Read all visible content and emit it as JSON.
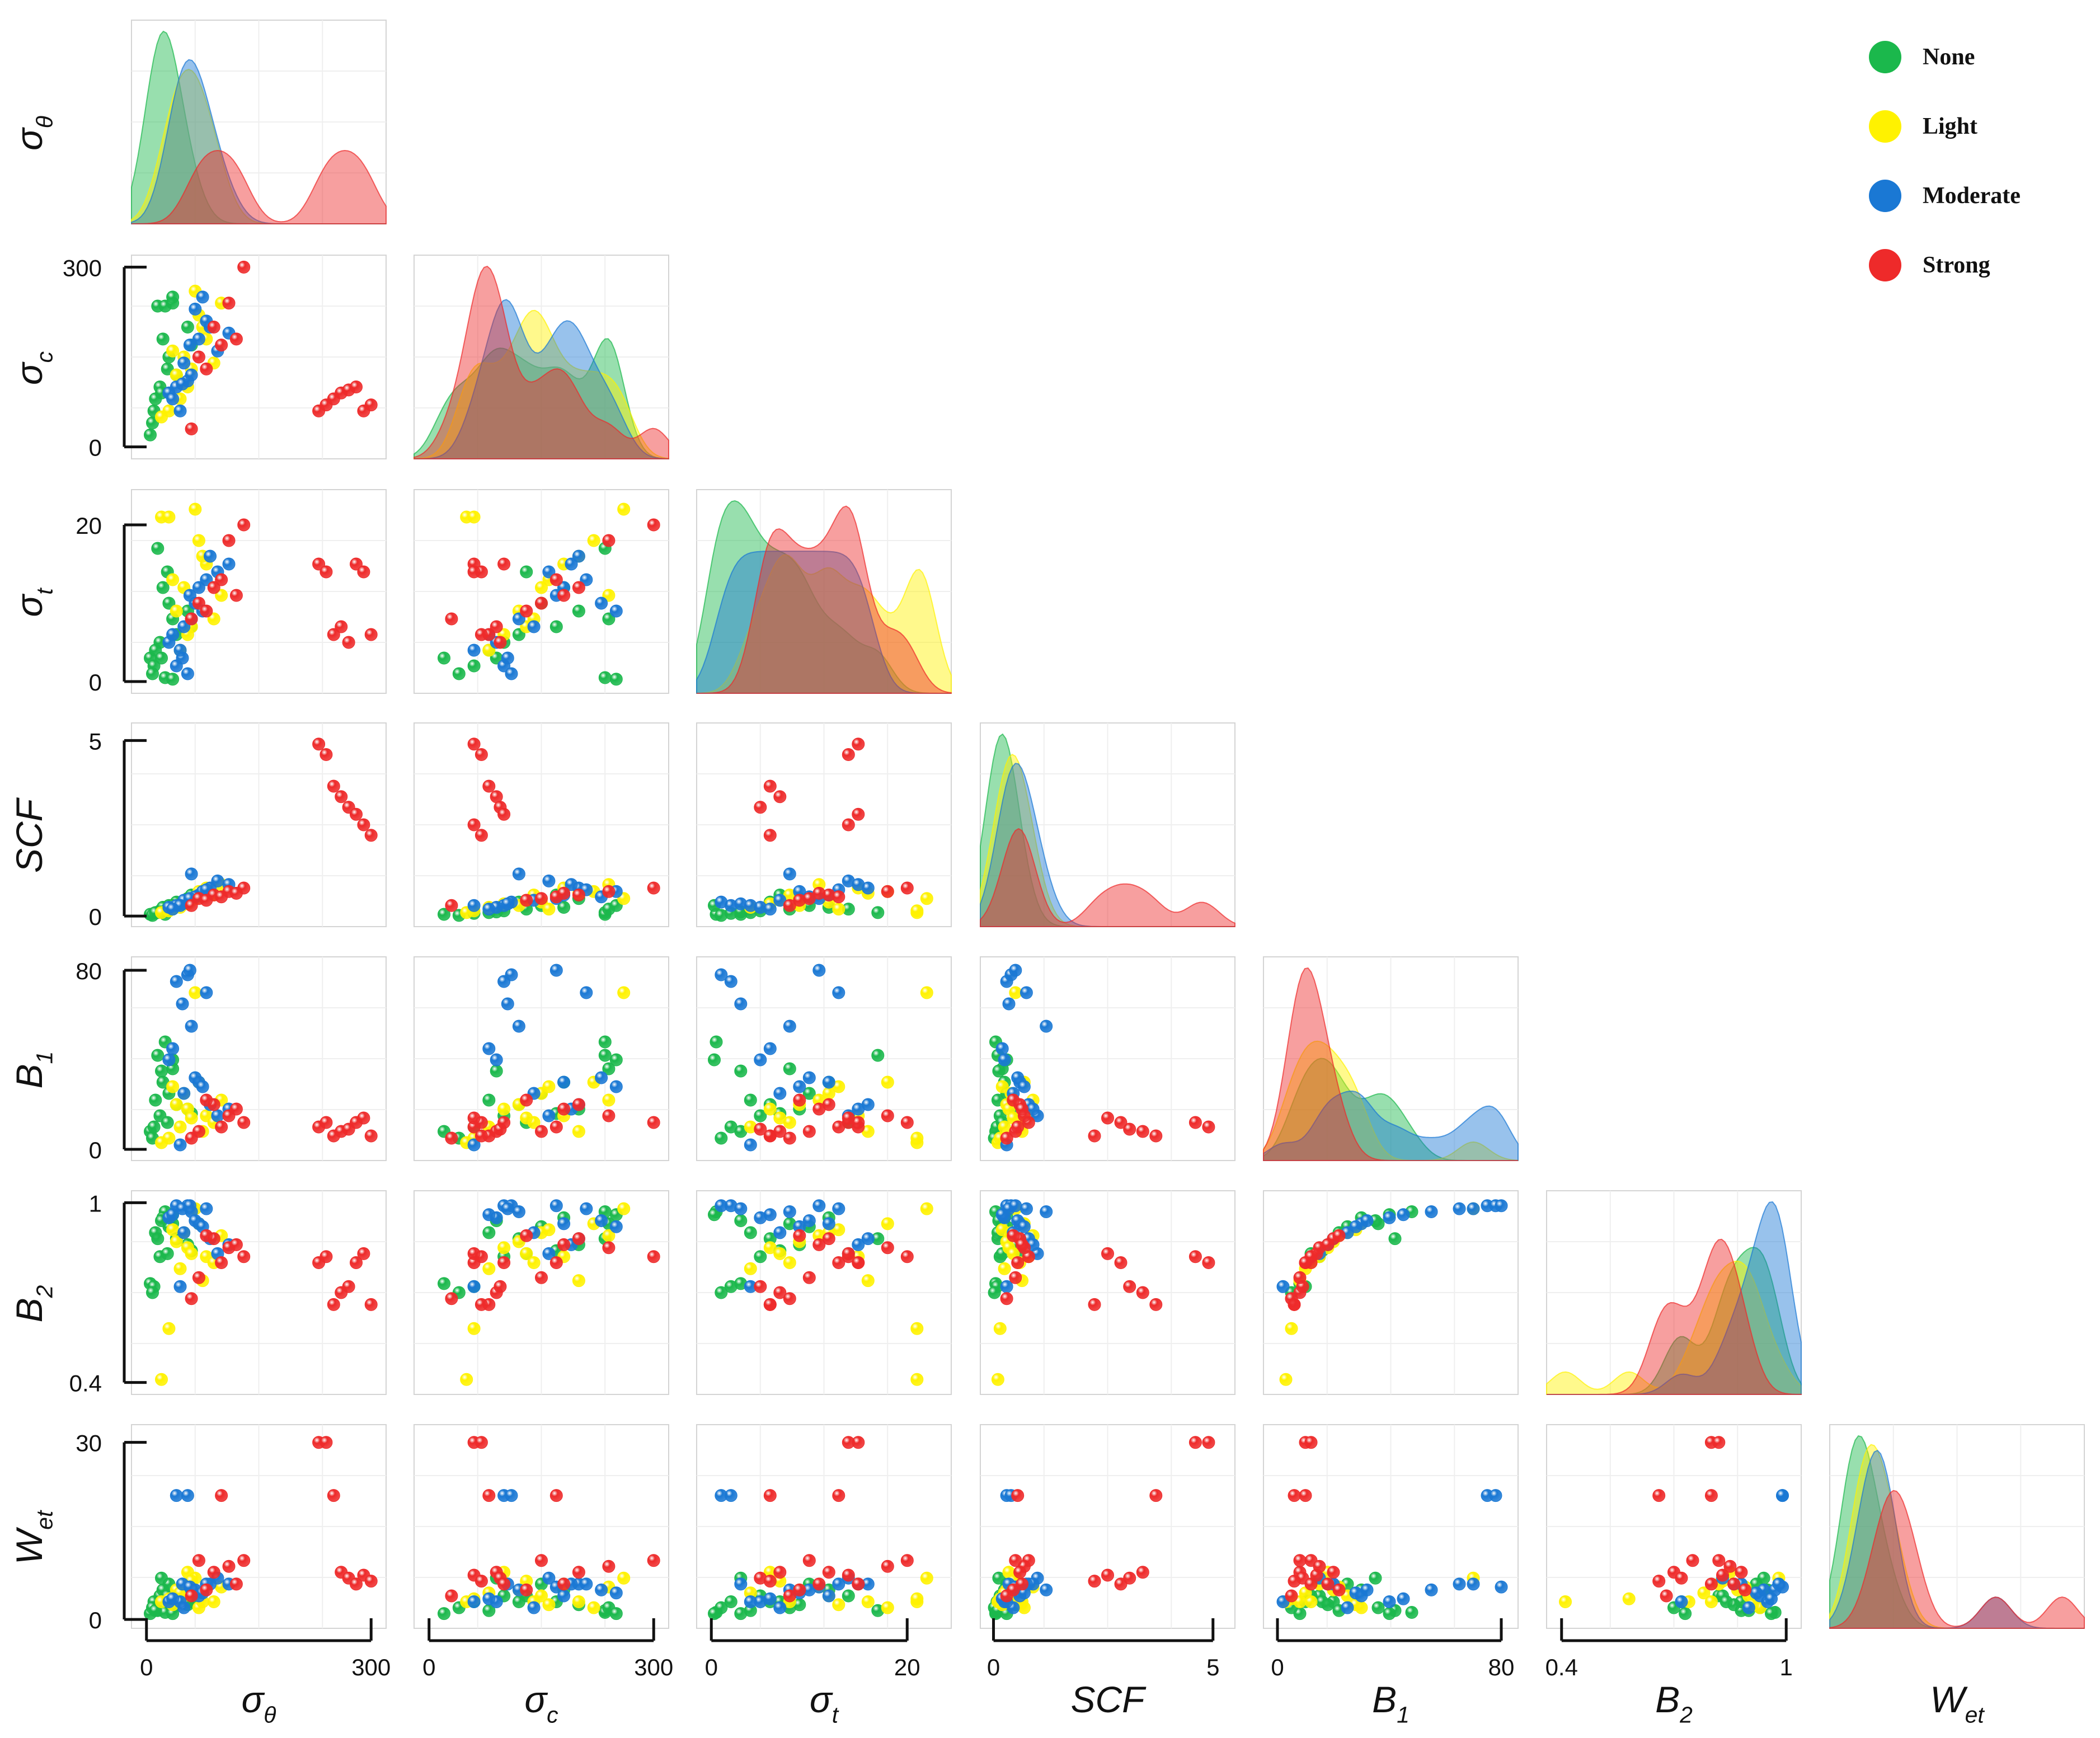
{
  "chart_data": {
    "type": "scatter",
    "title": "",
    "variables": [
      {
        "key": "s_theta",
        "base": "σ",
        "sub": "θ",
        "range": [
          -20,
          320
        ],
        "ticks": [
          0,
          300
        ]
      },
      {
        "key": "s_c",
        "base": "σ",
        "sub": "c",
        "range": [
          -20,
          320
        ],
        "ticks": [
          0,
          300
        ]
      },
      {
        "key": "s_t",
        "base": "σ",
        "sub": "t",
        "range": [
          -1.5,
          24.5
        ],
        "ticks": [
          0,
          20
        ]
      },
      {
        "key": "SCF",
        "base": "SCF",
        "sub": "",
        "range": [
          -0.3,
          5.5
        ],
        "ticks": [
          0,
          5
        ]
      },
      {
        "key": "B1",
        "base": "B",
        "sub": "1",
        "range": [
          -5,
          86
        ],
        "ticks": [
          0,
          80
        ]
      },
      {
        "key": "B2",
        "base": "B",
        "sub": "2",
        "range": [
          0.36,
          1.04
        ],
        "ticks": [
          0.4,
          1
        ]
      },
      {
        "key": "Wet",
        "base": "W",
        "sub": "et",
        "range": [
          -1.5,
          33
        ],
        "ticks": [
          0,
          30
        ]
      }
    ],
    "legend": {
      "position": "top-right",
      "categories": [
        {
          "name": "None",
          "color": "#1bb84c"
        },
        {
          "name": "Light",
          "color": "#fff200"
        },
        {
          "name": "Moderate",
          "color": "#1a78d4"
        },
        {
          "name": "Strong",
          "color": "#ee2a2a"
        }
      ]
    },
    "series": [
      {
        "name": "None",
        "points": [
          {
            "s_theta": 15,
            "s_c": 235,
            "s_t": 17,
            "SCF": 0.1,
            "B1": 42,
            "B2": 0.88,
            "Wet": 1.5
          },
          {
            "s_theta": 25,
            "s_c": 235,
            "s_t": 0.5,
            "SCF": 0.05,
            "B1": 48,
            "B2": 0.97,
            "Wet": 1.2
          },
          {
            "s_theta": 35,
            "s_c": 240,
            "s_t": 8,
            "SCF": 0.2,
            "B1": 36,
            "B2": 0.93,
            "Wet": 2
          },
          {
            "s_theta": 5,
            "s_c": 20,
            "s_t": 3,
            "SCF": 0.05,
            "B1": 8,
            "B2": 0.73,
            "Wet": 1
          },
          {
            "s_theta": 10,
            "s_c": 60,
            "s_t": 2,
            "SCF": 0.08,
            "B1": 10,
            "B2": 0.72,
            "Wet": 3
          },
          {
            "s_theta": 18,
            "s_c": 100,
            "s_t": 5,
            "SCF": 0.15,
            "B1": 15,
            "B2": 0.82,
            "Wet": 4
          },
          {
            "s_theta": 30,
            "s_c": 150,
            "s_t": 10,
            "SCF": 0.3,
            "B1": 25,
            "B2": 0.92,
            "Wet": 6
          },
          {
            "s_theta": 22,
            "s_c": 180,
            "s_t": 12,
            "SCF": 0.25,
            "B1": 30,
            "B2": 0.95,
            "Wet": 5
          },
          {
            "s_theta": 8,
            "s_c": 40,
            "s_t": 1,
            "SCF": 0.02,
            "B1": 5,
            "B2": 0.7,
            "Wet": 2
          },
          {
            "s_theta": 40,
            "s_c": 120,
            "s_t": 6,
            "SCF": 0.4,
            "B1": 20,
            "B2": 0.88,
            "Wet": 3
          },
          {
            "s_theta": 12,
            "s_c": 80,
            "s_t": 4,
            "SCF": 0.1,
            "B1": 22,
            "B2": 0.9,
            "Wet": 1.5
          },
          {
            "s_theta": 55,
            "s_c": 200,
            "s_t": 9,
            "SCF": 0.5,
            "B1": 18,
            "B2": 0.86,
            "Wet": 2.5
          },
          {
            "s_theta": 28,
            "s_c": 130,
            "s_t": 14,
            "SCF": 0.2,
            "B1": 12,
            "B2": 0.83,
            "Wet": 4
          },
          {
            "s_theta": 60,
            "s_c": 170,
            "s_t": 7,
            "SCF": 0.6,
            "B1": 16,
            "B2": 0.84,
            "Wet": 3
          },
          {
            "s_theta": 20,
            "s_c": 90,
            "s_t": 3,
            "SCF": 0.12,
            "B1": 35,
            "B2": 0.94,
            "Wet": 7
          },
          {
            "s_theta": 35,
            "s_c": 250,
            "s_t": 0.3,
            "SCF": 0.3,
            "B1": 40,
            "B2": 0.96,
            "Wet": 1
          }
        ]
      },
      {
        "name": "Light",
        "points": [
          {
            "s_theta": 20,
            "s_c": 50,
            "s_t": 21,
            "SCF": 0.1,
            "B1": 3,
            "B2": 0.41,
            "Wet": 3
          },
          {
            "s_theta": 30,
            "s_c": 60,
            "s_t": 21,
            "SCF": 0.15,
            "B1": 5,
            "B2": 0.58,
            "Wet": 3.5
          },
          {
            "s_theta": 65,
            "s_c": 260,
            "s_t": 22,
            "SCF": 0.5,
            "B1": 70,
            "B2": 0.98,
            "Wet": 7
          },
          {
            "s_theta": 50,
            "s_c": 150,
            "s_t": 12,
            "SCF": 0.4,
            "B1": 25,
            "B2": 0.9,
            "Wet": 4
          },
          {
            "s_theta": 40,
            "s_c": 120,
            "s_t": 9,
            "SCF": 0.3,
            "B1": 20,
            "B2": 0.87,
            "Wet": 5
          },
          {
            "s_theta": 80,
            "s_c": 180,
            "s_t": 15,
            "SCF": 0.8,
            "B1": 15,
            "B2": 0.82,
            "Wet": 6
          },
          {
            "s_theta": 70,
            "s_c": 220,
            "s_t": 18,
            "SCF": 0.7,
            "B1": 30,
            "B2": 0.93,
            "Wet": 2
          },
          {
            "s_theta": 90,
            "s_c": 140,
            "s_t": 8,
            "SCF": 0.6,
            "B1": 12,
            "B2": 0.8,
            "Wet": 3
          },
          {
            "s_theta": 55,
            "s_c": 100,
            "s_t": 6,
            "SCF": 0.35,
            "B1": 18,
            "B2": 0.85,
            "Wet": 8
          },
          {
            "s_theta": 45,
            "s_c": 80,
            "s_t": 4,
            "SCF": 0.25,
            "B1": 10,
            "B2": 0.78,
            "Wet": 4.5
          },
          {
            "s_theta": 100,
            "s_c": 240,
            "s_t": 11,
            "SCF": 0.9,
            "B1": 22,
            "B2": 0.89,
            "Wet": 5.5
          },
          {
            "s_theta": 35,
            "s_c": 160,
            "s_t": 13,
            "SCF": 0.2,
            "B1": 28,
            "B2": 0.91,
            "Wet": 2.5
          },
          {
            "s_theta": 75,
            "s_c": 200,
            "s_t": 16,
            "SCF": 0.65,
            "B1": 8,
            "B2": 0.74,
            "Wet": 3
          },
          {
            "s_theta": 60,
            "s_c": 130,
            "s_t": 7,
            "SCF": 0.45,
            "B1": 14,
            "B2": 0.83,
            "Wet": 6.5
          }
        ]
      },
      {
        "name": "Moderate",
        "points": [
          {
            "s_theta": 40,
            "s_c": 100,
            "s_t": 2,
            "SCF": 0.3,
            "B1": 75,
            "B2": 0.99,
            "Wet": 21
          },
          {
            "s_theta": 55,
            "s_c": 110,
            "s_t": 1,
            "SCF": 0.4,
            "B1": 78,
            "B2": 0.99,
            "Wet": 21
          },
          {
            "s_theta": 48,
            "s_c": 105,
            "s_t": 3,
            "SCF": 0.35,
            "B1": 65,
            "B2": 0.98,
            "Wet": 6
          },
          {
            "s_theta": 60,
            "s_c": 120,
            "s_t": 8,
            "SCF": 1.2,
            "B1": 55,
            "B2": 0.97,
            "Wet": 5
          },
          {
            "s_theta": 30,
            "s_c": 90,
            "s_t": 5,
            "SCF": 0.25,
            "B1": 40,
            "B2": 0.95,
            "Wet": 3
          },
          {
            "s_theta": 70,
            "s_c": 180,
            "s_t": 12,
            "SCF": 0.6,
            "B1": 30,
            "B2": 0.93,
            "Wet": 4
          },
          {
            "s_theta": 85,
            "s_c": 200,
            "s_t": 16,
            "SCF": 0.8,
            "B1": 20,
            "B2": 0.88,
            "Wet": 6
          },
          {
            "s_theta": 50,
            "s_c": 140,
            "s_t": 7,
            "SCF": 0.45,
            "B1": 25,
            "B2": 0.9,
            "Wet": 2
          },
          {
            "s_theta": 65,
            "s_c": 230,
            "s_t": 10,
            "SCF": 0.55,
            "B1": 32,
            "B2": 0.94,
            "Wet": 5
          },
          {
            "s_theta": 95,
            "s_c": 160,
            "s_t": 14,
            "SCF": 1,
            "B1": 15,
            "B2": 0.83,
            "Wet": 7
          },
          {
            "s_theta": 45,
            "s_c": 60,
            "s_t": 4,
            "SCF": 0.3,
            "B1": 2,
            "B2": 0.72,
            "Wet": 3
          },
          {
            "s_theta": 75,
            "s_c": 250,
            "s_t": 9,
            "SCF": 0.7,
            "B1": 28,
            "B2": 0.92,
            "Wet": 4.5
          },
          {
            "s_theta": 110,
            "s_c": 190,
            "s_t": 15,
            "SCF": 0.9,
            "B1": 18,
            "B2": 0.86,
            "Wet": 6
          },
          {
            "s_theta": 35,
            "s_c": 80,
            "s_t": 6,
            "SCF": 0.2,
            "B1": 45,
            "B2": 0.96,
            "Wet": 3.5
          },
          {
            "s_theta": 58,
            "s_c": 170,
            "s_t": 11,
            "SCF": 0.5,
            "B1": 80,
            "B2": 0.99,
            "Wet": 5.5
          },
          {
            "s_theta": 80,
            "s_c": 210,
            "s_t": 13,
            "SCF": 0.75,
            "B1": 70,
            "B2": 0.98,
            "Wet": 6
          }
        ]
      },
      {
        "name": "Strong",
        "points": [
          {
            "s_theta": 230,
            "s_c": 60,
            "s_t": 15,
            "SCF": 4.9,
            "B1": 10,
            "B2": 0.8,
            "Wet": 30
          },
          {
            "s_theta": 240,
            "s_c": 70,
            "s_t": 14,
            "SCF": 4.6,
            "B1": 12,
            "B2": 0.82,
            "Wet": 30
          },
          {
            "s_theta": 250,
            "s_c": 80,
            "s_t": 6,
            "SCF": 3.7,
            "B1": 6,
            "B2": 0.66,
            "Wet": 21
          },
          {
            "s_theta": 260,
            "s_c": 90,
            "s_t": 7,
            "SCF": 3.4,
            "B1": 8,
            "B2": 0.7,
            "Wet": 8
          },
          {
            "s_theta": 270,
            "s_c": 95,
            "s_t": 5,
            "SCF": 3.1,
            "B1": 9,
            "B2": 0.72,
            "Wet": 7
          },
          {
            "s_theta": 280,
            "s_c": 100,
            "s_t": 15,
            "SCF": 2.9,
            "B1": 12,
            "B2": 0.8,
            "Wet": 6
          },
          {
            "s_theta": 290,
            "s_c": 60,
            "s_t": 14,
            "SCF": 2.6,
            "B1": 14,
            "B2": 0.83,
            "Wet": 7.5
          },
          {
            "s_theta": 300,
            "s_c": 70,
            "s_t": 6,
            "SCF": 2.3,
            "B1": 6,
            "B2": 0.66,
            "Wet": 6.5
          },
          {
            "s_theta": 130,
            "s_c": 300,
            "s_t": 20,
            "SCF": 0.8,
            "B1": 12,
            "B2": 0.82,
            "Wet": 10
          },
          {
            "s_theta": 110,
            "s_c": 240,
            "s_t": 18,
            "SCF": 0.7,
            "B1": 15,
            "B2": 0.85,
            "Wet": 9
          },
          {
            "s_theta": 90,
            "s_c": 200,
            "s_t": 12,
            "SCF": 0.6,
            "B1": 20,
            "B2": 0.88,
            "Wet": 8
          },
          {
            "s_theta": 70,
            "s_c": 150,
            "s_t": 10,
            "SCF": 0.5,
            "B1": 8,
            "B2": 0.75,
            "Wet": 10
          },
          {
            "s_theta": 100,
            "s_c": 170,
            "s_t": 13,
            "SCF": 0.55,
            "B1": 10,
            "B2": 0.8,
            "Wet": 21
          },
          {
            "s_theta": 80,
            "s_c": 130,
            "s_t": 9,
            "SCF": 0.45,
            "B1": 22,
            "B2": 0.89,
            "Wet": 5
          },
          {
            "s_theta": 120,
            "s_c": 180,
            "s_t": 11,
            "SCF": 0.65,
            "B1": 18,
            "B2": 0.86,
            "Wet": 6
          },
          {
            "s_theta": 60,
            "s_c": 30,
            "s_t": 8,
            "SCF": 0.3,
            "B1": 5,
            "B2": 0.68,
            "Wet": 4
          }
        ]
      }
    ]
  }
}
